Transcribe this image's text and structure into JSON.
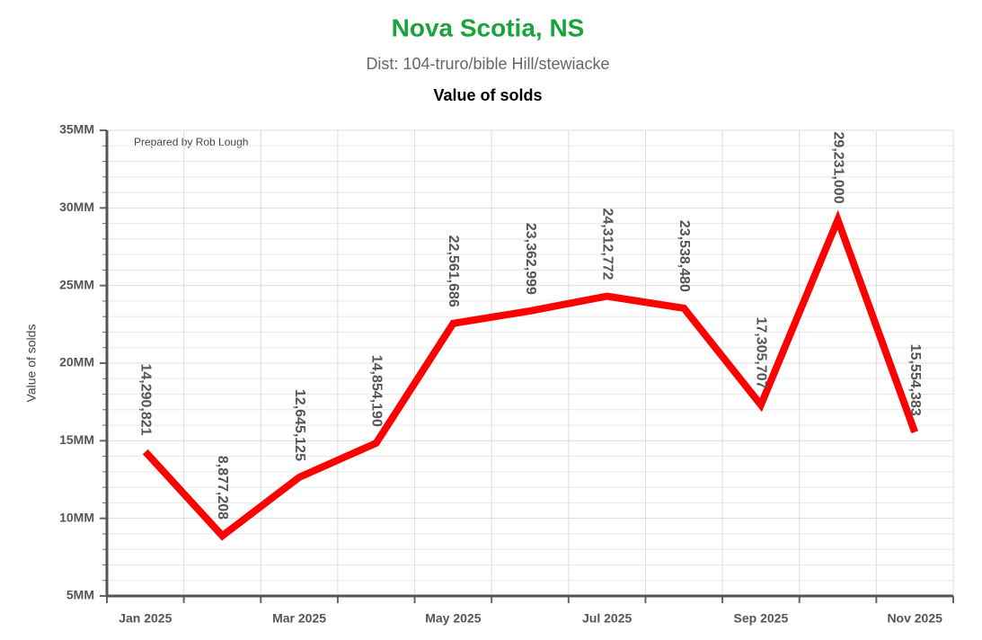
{
  "chart_data": {
    "type": "line",
    "title": "Nova Scotia, NS",
    "subtitle": "Dist: 104-truro/bible Hill/stewiacke",
    "chart_title": "Value of solds",
    "y_label": "Value of solds",
    "annotation": "Prepared by Rob Lough",
    "categories": [
      "Jan 2025",
      null,
      "Mar 2025",
      null,
      "May 2025",
      null,
      "Jul 2025",
      null,
      "Sep 2025",
      null,
      "Nov 2025"
    ],
    "series": [
      {
        "name": "Value of solds",
        "color": "#ff0000",
        "values": [
          14290821,
          8877208,
          12645125,
          14854190,
          22561686,
          23362999,
          24312772,
          23538480,
          17305707,
          29231000,
          15554383
        ],
        "value_labels": [
          "14,290,821",
          "8,877,208",
          "12,645,125",
          "14,854,190",
          "22,561,686",
          "23,362,999",
          "24,312,772",
          "23,538,480",
          "17,305,707",
          "29,231,000",
          "15,554,383"
        ]
      }
    ],
    "ylim": [
      5000000,
      35000000
    ],
    "yticks": [
      {
        "value": 5000000,
        "label": "5MM"
      },
      {
        "value": 10000000,
        "label": "10MM"
      },
      {
        "value": 15000000,
        "label": "15MM"
      },
      {
        "value": 20000000,
        "label": "20MM"
      },
      {
        "value": 25000000,
        "label": "25MM"
      },
      {
        "value": 30000000,
        "label": "30MM"
      },
      {
        "value": 35000000,
        "label": "35MM"
      }
    ],
    "grid": true
  }
}
